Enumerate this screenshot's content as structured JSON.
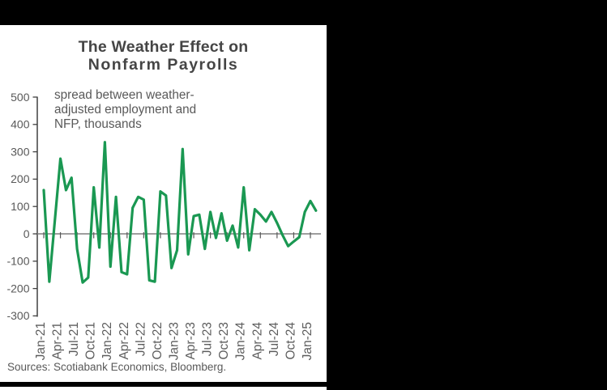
{
  "chart": {
    "title_line1": "The Weather Effect on",
    "title_line2": "Nonfarm Payrolls",
    "annotation_lines": [
      "spread between weather-",
      "adjusted employment and",
      "NFP, thousands"
    ],
    "source_note": "Sources: Scotiabank Economics, Bloomberg."
  },
  "chart_data": {
    "type": "line",
    "title": "The Weather Effect on Nonfarm Payrolls",
    "annotation": "spread between weather-adjusted employment and NFP, thousands",
    "x": [
      "Jan-21",
      "Feb-21",
      "Mar-21",
      "Apr-21",
      "May-21",
      "Jun-21",
      "Jul-21",
      "Aug-21",
      "Sep-21",
      "Oct-21",
      "Nov-21",
      "Dec-21",
      "Jan-22",
      "Feb-22",
      "Mar-22",
      "Apr-22",
      "May-22",
      "Jun-22",
      "Jul-22",
      "Aug-22",
      "Sep-22",
      "Oct-22",
      "Nov-22",
      "Dec-22",
      "Jan-23",
      "Feb-23",
      "Mar-23",
      "Apr-23",
      "May-23",
      "Jun-23",
      "Jul-23",
      "Aug-23",
      "Sep-23",
      "Oct-23",
      "Nov-23",
      "Dec-23",
      "Jan-24",
      "Feb-24",
      "Mar-24",
      "Apr-24",
      "May-24",
      "Jun-24",
      "Jul-24",
      "Aug-24",
      "Sep-24",
      "Oct-24",
      "Nov-24",
      "Dec-24",
      "Jan-25",
      "Feb-25"
    ],
    "values": [
      160,
      -175,
      50,
      275,
      160,
      205,
      -55,
      -178,
      -160,
      170,
      -50,
      335,
      -120,
      135,
      -140,
      -148,
      95,
      135,
      125,
      -170,
      -175,
      155,
      140,
      -125,
      -60,
      310,
      -75,
      65,
      70,
      -55,
      80,
      -15,
      75,
      -25,
      30,
      -50,
      170,
      -60,
      90,
      70,
      45,
      80,
      40,
      -5,
      -45,
      -28,
      -12,
      80,
      120,
      85
    ],
    "x_tick_labels": [
      "Jan-21",
      "Apr-21",
      "Jul-21",
      "Oct-21",
      "Jan-22",
      "Apr-22",
      "Jul-22",
      "Oct-22",
      "Jan-23",
      "Apr-23",
      "Jul-23",
      "Oct-23",
      "Jan-24",
      "Apr-24",
      "Jul-24",
      "Oct-24",
      "Jan-25"
    ],
    "y_ticks": [
      500,
      400,
      300,
      200,
      100,
      0,
      -100,
      -200,
      -300
    ],
    "ylim": [
      -300,
      500
    ],
    "series_color": "#1a9852",
    "grid": "zero-line-only",
    "legend_position": "none"
  }
}
